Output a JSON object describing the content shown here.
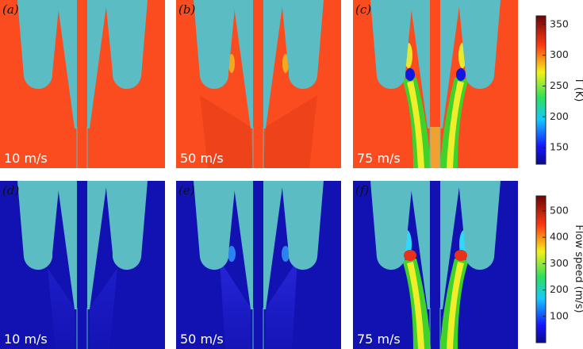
{
  "panels": [
    {
      "label": "(a)",
      "speed": "10 m/s"
    },
    {
      "label": "(b)",
      "speed": "50 m/s"
    },
    {
      "label": "(c)",
      "speed": "75 m/s"
    },
    {
      "label": "(d)",
      "speed": "10 m/s"
    },
    {
      "label": "(e)",
      "speed": "50 m/s"
    },
    {
      "label": "(f)",
      "speed": "75 m/s"
    }
  ],
  "colorbars": [
    {
      "label": "T (K)",
      "range": [
        123,
        364
      ],
      "ticks": [
        150,
        200,
        250,
        300,
        350
      ]
    },
    {
      "label": "Flow speed (m/s)",
      "range": [
        0,
        557
      ],
      "ticks": [
        100,
        200,
        300,
        400,
        500
      ]
    }
  ]
}
